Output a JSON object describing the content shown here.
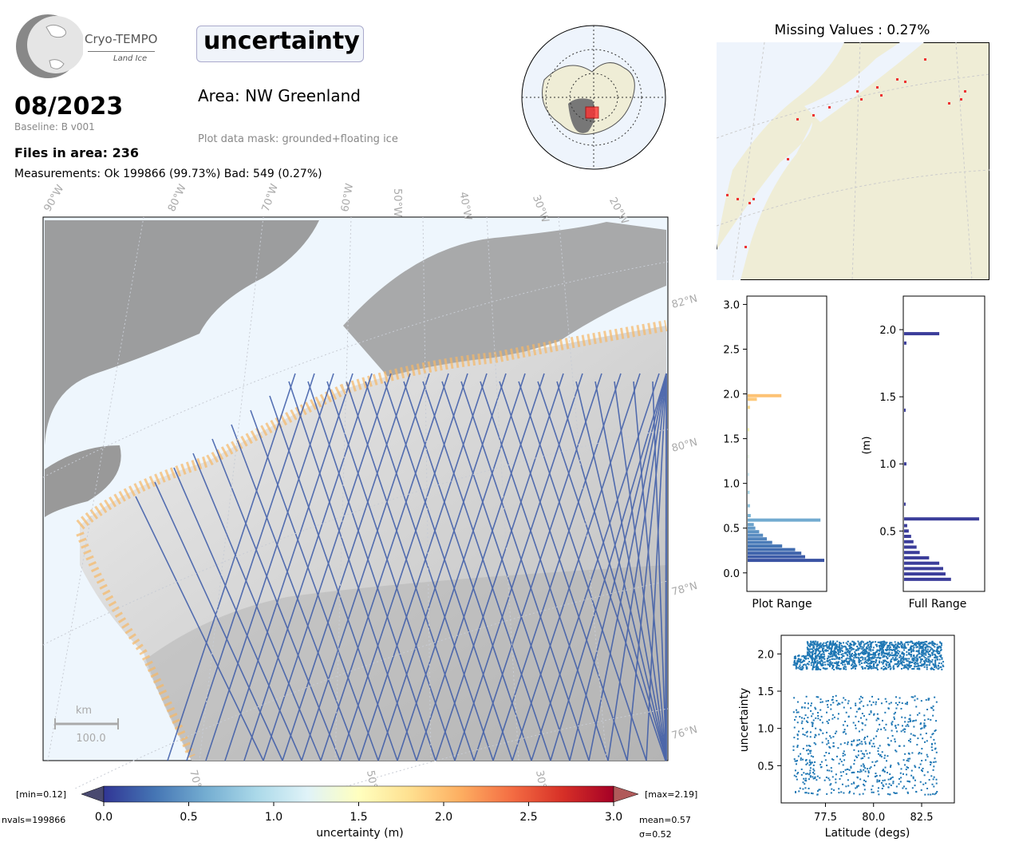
{
  "header": {
    "logo_name": "Cryo-TEMPO",
    "logo_sub": "Land Ice",
    "title": "uncertainty",
    "date": "08/2023",
    "baseline": "Baseline: B v001",
    "files": "Files in area: 236",
    "measurements": "Measurements: Ok 199866 (99.73%) Bad: 549 (0.27%)",
    "area": "Area: NW Greenland",
    "mask": "Plot data mask: grounded+floating ice"
  },
  "missing_title": "Missing Values : 0.27%",
  "colorbar": {
    "min_label": "[min=0.12]",
    "max_label": "[max=2.19]",
    "nvals": "nvals=199866",
    "mean": "mean=0.57",
    "sigma": "σ=0.52",
    "label": "uncertainty (m)",
    "ticks": [
      "0.0",
      "0.5",
      "1.0",
      "1.5",
      "2.0",
      "2.5",
      "3.0"
    ]
  },
  "map": {
    "lon_labels_top": [
      "90°W",
      "80°W",
      "70°W",
      "60°W",
      "50°W",
      "40°W",
      "30°W",
      "20°W"
    ],
    "lat_labels": [
      "82°N",
      "80°N",
      "78°N",
      "76°N"
    ],
    "lon_labels_bottom": [
      "70°W",
      "50°W",
      "30°W"
    ],
    "scale_unit": "km",
    "scale_value": "100.0"
  },
  "chart_data": [
    {
      "type": "bar",
      "orientation": "horizontal",
      "xlabel": "Plot Range",
      "ylim": [
        0,
        3.1
      ],
      "yticks": [
        "0.0",
        "0.5",
        "1.0",
        "1.5",
        "2.0",
        "2.5",
        "3.0"
      ],
      "bins": [
        {
          "y": 0.14,
          "count": 1.0
        },
        {
          "y": 0.18,
          "count": 0.75
        },
        {
          "y": 0.22,
          "count": 0.7
        },
        {
          "y": 0.26,
          "count": 0.62
        },
        {
          "y": 0.3,
          "count": 0.45
        },
        {
          "y": 0.34,
          "count": 0.32
        },
        {
          "y": 0.38,
          "count": 0.25
        },
        {
          "y": 0.42,
          "count": 0.2
        },
        {
          "y": 0.46,
          "count": 0.15
        },
        {
          "y": 0.5,
          "count": 0.1
        },
        {
          "y": 0.54,
          "count": 0.08
        },
        {
          "y": 0.59,
          "count": 0.95
        },
        {
          "y": 0.64,
          "count": 0.04
        },
        {
          "y": 0.75,
          "count": 0.03
        },
        {
          "y": 0.9,
          "count": 0.025
        },
        {
          "y": 1.1,
          "count": 0.02
        },
        {
          "y": 1.3,
          "count": 0.02
        },
        {
          "y": 1.6,
          "count": 0.02
        },
        {
          "y": 1.85,
          "count": 0.03
        },
        {
          "y": 1.94,
          "count": 0.12
        },
        {
          "y": 1.98,
          "count": 0.44
        }
      ]
    },
    {
      "type": "bar",
      "orientation": "horizontal",
      "xlabel": "Full Range",
      "ylabel": "(m)",
      "ylim": [
        0.05,
        2.25
      ],
      "yticks": [
        "0.5",
        "1.0",
        "1.5",
        "2.0"
      ],
      "bins": [
        {
          "y": 0.14,
          "count": 0.6
        },
        {
          "y": 0.18,
          "count": 0.53
        },
        {
          "y": 0.22,
          "count": 0.5
        },
        {
          "y": 0.26,
          "count": 0.45
        },
        {
          "y": 0.3,
          "count": 0.32
        },
        {
          "y": 0.34,
          "count": 0.2
        },
        {
          "y": 0.38,
          "count": 0.16
        },
        {
          "y": 0.42,
          "count": 0.12
        },
        {
          "y": 0.46,
          "count": 0.09
        },
        {
          "y": 0.5,
          "count": 0.06
        },
        {
          "y": 0.54,
          "count": 0.04
        },
        {
          "y": 0.59,
          "count": 0.96
        },
        {
          "y": 0.7,
          "count": 0.02
        },
        {
          "y": 1.0,
          "count": 0.03
        },
        {
          "y": 1.4,
          "count": 0.02
        },
        {
          "y": 1.9,
          "count": 0.03
        },
        {
          "y": 1.97,
          "count": 0.45
        }
      ]
    },
    {
      "type": "scatter",
      "xlabel": "Latitude (degs)",
      "ylabel": "uncertainty",
      "xlim": [
        75.2,
        84.2
      ],
      "ylim": [
        0.0,
        2.25
      ],
      "xticks": [
        "77.5",
        "80.0",
        "82.5"
      ],
      "yticks": [
        "0.5",
        "1.0",
        "1.5",
        "2.0"
      ],
      "bands": [
        {
          "lat": [
            75.8,
            83.3
          ],
          "unc": [
            0.12,
            1.45
          ]
        },
        {
          "lat": [
            75.8,
            83.6
          ],
          "unc": [
            1.8,
            2.0
          ]
        },
        {
          "lat": [
            76.5,
            83.5
          ],
          "unc": [
            2.0,
            2.18
          ]
        }
      ]
    }
  ]
}
